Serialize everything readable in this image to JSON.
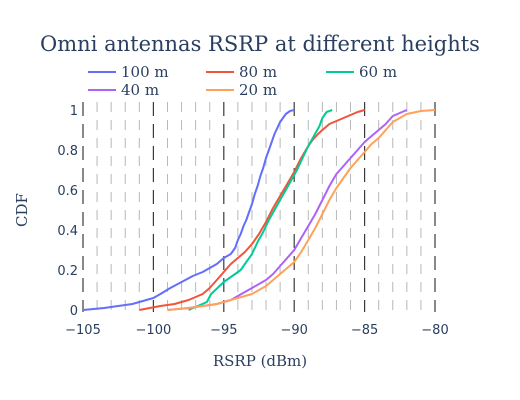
{
  "chart_data": {
    "type": "line",
    "title": "Omni antennas RSRP at different heights",
    "xlabel": "RSRP (dBm)",
    "ylabel": "CDF",
    "xlim": [
      -105,
      -80
    ],
    "ylim": [
      0,
      1
    ],
    "x_ticks": [
      -105,
      -100,
      -95,
      -90,
      -85,
      -80
    ],
    "y_ticks": [
      0,
      0.2,
      0.4,
      0.6,
      0.8,
      1
    ],
    "legend_position": "top",
    "grid": "dashed vertical lines",
    "series": [
      {
        "name": "100 m",
        "color": "#636efa",
        "x": [
          -105,
          -103.5,
          -102.5,
          -101.5,
          -100.5,
          -100,
          -99.5,
          -98.8,
          -98,
          -97.2,
          -96.5,
          -96,
          -95.5,
          -95,
          -94.5,
          -94.2,
          -94,
          -93.8,
          -93.6,
          -93.4,
          -93.2,
          -93,
          -92.8,
          -92.6,
          -92.4,
          -92.2,
          -92,
          -91.7,
          -91.4,
          -91,
          -90.6,
          -90.3,
          -90
        ],
        "y": [
          0,
          0.01,
          0.02,
          0.03,
          0.05,
          0.06,
          0.08,
          0.11,
          0.14,
          0.17,
          0.19,
          0.21,
          0.23,
          0.26,
          0.28,
          0.31,
          0.35,
          0.38,
          0.42,
          0.45,
          0.49,
          0.53,
          0.58,
          0.62,
          0.67,
          0.71,
          0.76,
          0.82,
          0.88,
          0.94,
          0.98,
          0.995,
          1
        ]
      },
      {
        "name": "80 m",
        "color": "#ef553b",
        "x": [
          -101,
          -99.5,
          -98.5,
          -97.5,
          -96.5,
          -96,
          -95.5,
          -95,
          -94.5,
          -94,
          -93.5,
          -93,
          -92.5,
          -92,
          -91.5,
          -91,
          -90.5,
          -90,
          -89.5,
          -89,
          -88.7,
          -88.3,
          -88,
          -87.5,
          -86.5,
          -85.5,
          -85
        ],
        "y": [
          0,
          0.02,
          0.03,
          0.05,
          0.08,
          0.11,
          0.15,
          0.19,
          0.23,
          0.26,
          0.29,
          0.33,
          0.38,
          0.44,
          0.51,
          0.57,
          0.63,
          0.69,
          0.76,
          0.82,
          0.85,
          0.88,
          0.9,
          0.93,
          0.96,
          0.99,
          1
        ]
      },
      {
        "name": "60 m",
        "color": "#00cc96",
        "x": [
          -97.5,
          -96.2,
          -95.9,
          -95.6,
          -95.3,
          -95,
          -94.6,
          -94.2,
          -93.8,
          -93.4,
          -93,
          -92.6,
          -92.2,
          -91.8,
          -91.4,
          -91,
          -90.6,
          -90.2,
          -89.8,
          -89.4,
          -89,
          -88.6,
          -88.2,
          -88,
          -87.7,
          -87.3
        ],
        "y": [
          0,
          0.04,
          0.08,
          0.1,
          0.12,
          0.14,
          0.16,
          0.18,
          0.2,
          0.24,
          0.28,
          0.34,
          0.39,
          0.45,
          0.5,
          0.55,
          0.6,
          0.65,
          0.7,
          0.76,
          0.82,
          0.87,
          0.92,
          0.96,
          0.99,
          1
        ]
      },
      {
        "name": "40 m",
        "color": "#ab63fa",
        "x": [
          -99,
          -97.5,
          -96.5,
          -95.5,
          -95,
          -94.5,
          -94,
          -93.5,
          -93,
          -92.5,
          -92,
          -91.5,
          -91,
          -90.5,
          -90,
          -89.5,
          -89,
          -88.5,
          -88,
          -87.5,
          -87,
          -86.5,
          -86,
          -85.5,
          -85,
          -84.5,
          -84,
          -83.5,
          -83,
          -82
        ],
        "y": [
          0,
          0.01,
          0.02,
          0.03,
          0.04,
          0.05,
          0.07,
          0.09,
          0.11,
          0.13,
          0.15,
          0.18,
          0.22,
          0.26,
          0.3,
          0.36,
          0.42,
          0.48,
          0.55,
          0.62,
          0.68,
          0.72,
          0.76,
          0.8,
          0.84,
          0.87,
          0.9,
          0.93,
          0.97,
          1
        ]
      },
      {
        "name": "20 m",
        "color": "#ffa15a",
        "x": [
          -99,
          -97.5,
          -96.5,
          -95.5,
          -95,
          -94.5,
          -94,
          -93.5,
          -93,
          -92.5,
          -92,
          -91.5,
          -91,
          -90.5,
          -90,
          -89.5,
          -89,
          -88.5,
          -88,
          -87.5,
          -87,
          -86.5,
          -86,
          -85.5,
          -85,
          -84.5,
          -84,
          -83.5,
          -83,
          -82,
          -81,
          -80
        ],
        "y": [
          0,
          0.01,
          0.02,
          0.03,
          0.04,
          0.05,
          0.06,
          0.07,
          0.08,
          0.1,
          0.12,
          0.15,
          0.18,
          0.21,
          0.24,
          0.29,
          0.35,
          0.41,
          0.48,
          0.55,
          0.61,
          0.66,
          0.71,
          0.75,
          0.79,
          0.83,
          0.86,
          0.9,
          0.94,
          0.98,
          0.995,
          1
        ]
      }
    ]
  }
}
